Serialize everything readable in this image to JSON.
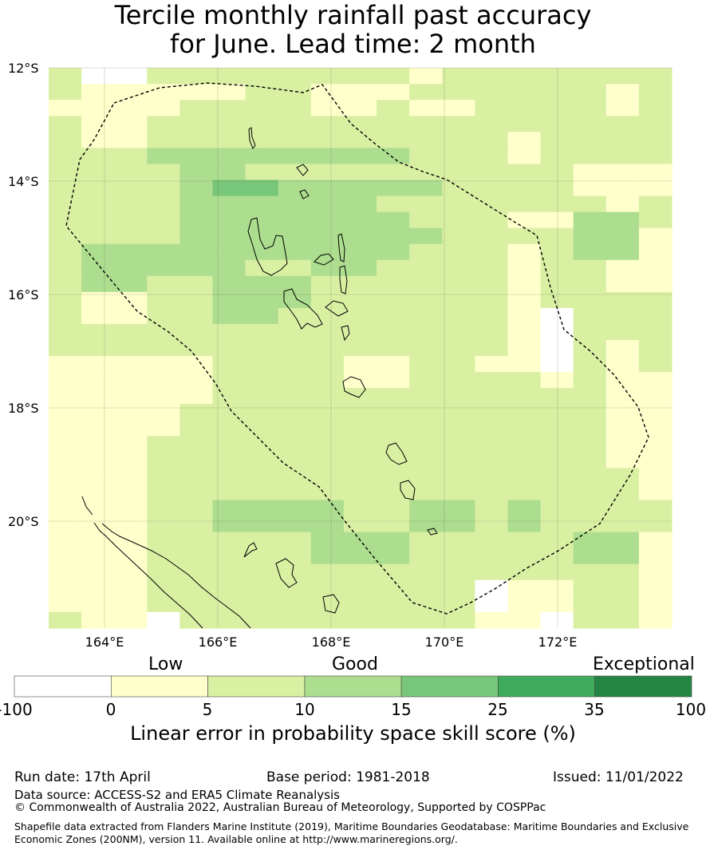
{
  "title_line1": "Tercile monthly rainfall past accuracy",
  "title_line2": "for June. Lead time: 2 month",
  "lat_labels": [
    "12°S",
    "14°S",
    "16°S",
    "18°S",
    "20°S"
  ],
  "lon_labels": [
    "164°E",
    "166°E",
    "168°E",
    "170°E",
    "172°E"
  ],
  "category_labels": {
    "low": "Low",
    "good": "Good",
    "exceptional": "Exceptional"
  },
  "colorbar": {
    "ticks": [
      "-100",
      "0",
      "5",
      "10",
      "15",
      "25",
      "35",
      "100"
    ],
    "colors": [
      "#ffffff",
      "#ffffcc",
      "#d9f0a3",
      "#addd8e",
      "#78c679",
      "#41ab5d",
      "#238443"
    ],
    "label": "Linear error in probability space skill score (%)"
  },
  "grid_colors": {
    "W": "#ffffff",
    "Y": "#ffffcc",
    "L": "#d9f0a3",
    "M": "#addd8e",
    "D": "#78c679"
  },
  "footer": {
    "run_date": "Run date: 17th April",
    "base_period": "Base period: 1981-2018",
    "issued": "Issued: 11/01/2022",
    "data_source": "Data source: ACCESS-S2 and ERA5 Climate Reanalysis",
    "copyright": "© Commonwealth of Australia 2022, Australian Bureau of Meteorology, Supported by COSPPac",
    "shapefile_line1": "Shapefile data extracted from Flanders Marine Institute (2019), Maritime Boundaries Geodatabase: Maritime Boundaries and Exclusive",
    "shapefile_line2": "Economic Zones (200NM), version 11. Available online at http://www.marineregions.org/."
  }
}
